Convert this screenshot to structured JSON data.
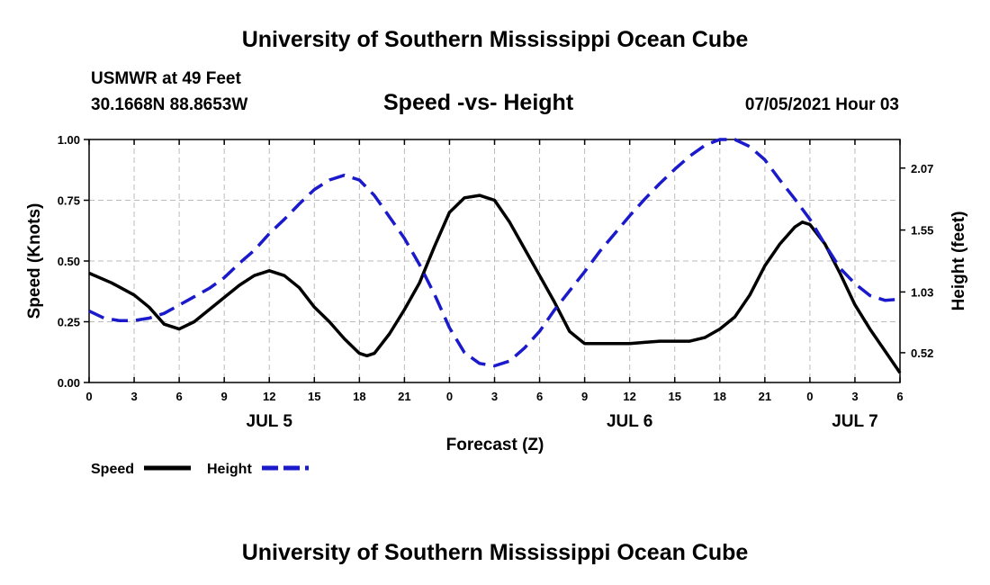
{
  "header": {
    "top_title": "University of Southern Mississippi Ocean Cube",
    "station": "USMWR at 49 Feet",
    "coords": "30.1668N  88.8653W",
    "plot_title": "Speed -vs- Height",
    "date": "07/05/2021 Hour 03",
    "bottom_title": "University of Southern Mississippi Ocean Cube"
  },
  "colors": {
    "speed": "#000000",
    "height": "#1a1acc",
    "grid": "#bbbbbb"
  },
  "chart_data": {
    "type": "line",
    "title": "Speed -vs- Height",
    "xlabel": "Forecast (Z)",
    "ylabel": "Speed (Knots)",
    "y2label": "Height (feet)",
    "xlim": [
      0,
      54
    ],
    "ylim": [
      0,
      1.0
    ],
    "y2lim": [
      0.27,
      2.31
    ],
    "x_ticks": [
      0,
      3,
      6,
      9,
      12,
      15,
      18,
      21,
      24,
      27,
      30,
      33,
      36,
      39,
      42,
      45,
      48,
      51,
      54
    ],
    "x_tick_labels": [
      "0",
      "3",
      "6",
      "9",
      "12",
      "15",
      "18",
      "21",
      "0",
      "3",
      "6",
      "9",
      "12",
      "15",
      "18",
      "21",
      "0",
      "3",
      "6"
    ],
    "day_labels": [
      {
        "x": 12,
        "label": "JUL 5"
      },
      {
        "x": 36,
        "label": "JUL 6"
      },
      {
        "x": 51,
        "label": "JUL 7"
      }
    ],
    "y_ticks": [
      0.0,
      0.25,
      0.5,
      0.75,
      1.0
    ],
    "y_tick_labels": [
      "0.00",
      "0.25",
      "0.50",
      "0.75",
      "1.00"
    ],
    "y2_ticks": [
      0.52,
      1.03,
      1.55,
      2.07
    ],
    "y2_tick_labels": [
      "0.52",
      "1.03",
      "1.55",
      "2.07"
    ],
    "grid": true,
    "legend_position": "bottom-left",
    "series": [
      {
        "name": "Speed",
        "axis": "left",
        "style": "solid",
        "x": [
          0,
          1.5,
          3,
          4,
          5,
          6,
          7,
          8,
          9,
          10,
          11,
          12,
          13,
          14,
          15,
          16,
          17,
          18,
          18.5,
          19,
          20,
          21,
          22,
          23,
          24,
          25,
          26,
          27,
          28,
          29,
          30,
          31,
          32,
          33,
          34,
          35,
          36,
          37,
          38,
          39,
          40,
          41,
          42,
          43,
          44,
          45,
          46,
          47,
          47.5,
          48,
          49,
          50,
          51,
          52,
          53,
          54
        ],
        "values": [
          0.45,
          0.41,
          0.36,
          0.31,
          0.24,
          0.22,
          0.25,
          0.3,
          0.35,
          0.4,
          0.44,
          0.46,
          0.44,
          0.39,
          0.31,
          0.25,
          0.18,
          0.12,
          0.11,
          0.12,
          0.2,
          0.3,
          0.41,
          0.56,
          0.7,
          0.76,
          0.77,
          0.75,
          0.66,
          0.55,
          0.44,
          0.33,
          0.21,
          0.16,
          0.16,
          0.16,
          0.16,
          0.165,
          0.17,
          0.17,
          0.17,
          0.185,
          0.22,
          0.27,
          0.36,
          0.48,
          0.57,
          0.64,
          0.66,
          0.65,
          0.57,
          0.45,
          0.32,
          0.22,
          0.13,
          0.04
        ]
      },
      {
        "name": "Height",
        "axis": "right",
        "style": "dashed",
        "x": [
          0,
          1,
          2,
          3,
          4,
          5,
          6,
          7,
          8,
          9,
          10,
          11,
          12,
          13,
          14,
          15,
          16,
          17,
          18,
          19,
          20,
          21,
          22,
          23,
          24,
          25,
          26,
          27,
          28,
          29,
          30,
          31,
          32,
          33,
          34,
          35,
          36,
          37,
          38,
          39,
          40,
          41,
          42,
          43,
          44,
          45,
          46,
          47,
          48,
          49,
          50,
          51,
          52,
          53,
          54
        ],
        "values": [
          0.87,
          0.81,
          0.79,
          0.79,
          0.81,
          0.85,
          0.92,
          0.99,
          1.06,
          1.15,
          1.27,
          1.38,
          1.52,
          1.64,
          1.77,
          1.89,
          1.97,
          2.01,
          1.97,
          1.84,
          1.66,
          1.48,
          1.26,
          1.01,
          0.73,
          0.52,
          0.43,
          0.41,
          0.45,
          0.56,
          0.7,
          0.88,
          1.04,
          1.2,
          1.37,
          1.52,
          1.67,
          1.81,
          1.94,
          2.06,
          2.17,
          2.26,
          2.31,
          2.31,
          2.25,
          2.14,
          1.97,
          1.81,
          1.64,
          1.43,
          1.23,
          1.1,
          1.0,
          0.96,
          0.97
        ]
      }
    ]
  }
}
